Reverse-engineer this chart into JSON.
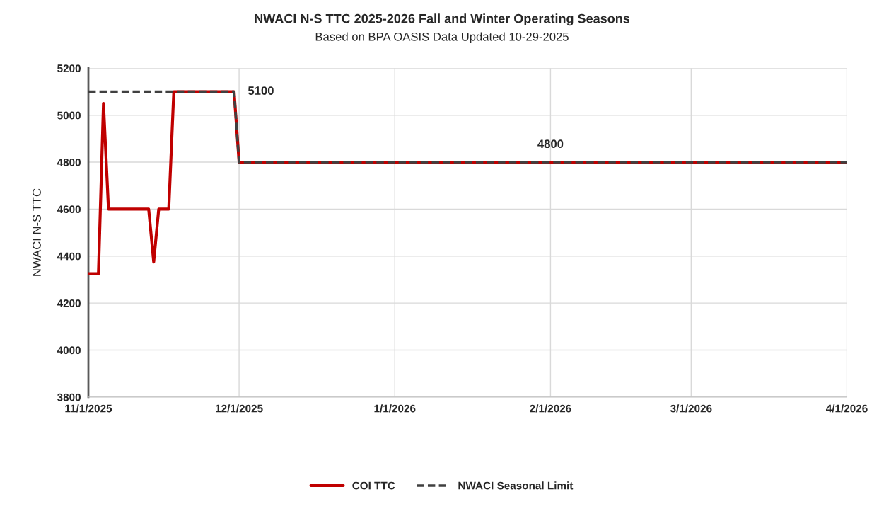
{
  "chart_data": {
    "type": "line",
    "title": "NWACI N-S TTC 2025-2026 Fall and Winter Operating Seasons",
    "subtitle": "Based on BPA OASIS Data Updated 10-29-2025",
    "ylabel": "NWACI N-S TTC",
    "series": [
      {
        "name": "COI TTC",
        "color": "#c00000",
        "line_style": "solid",
        "x": [
          "2025-11-01",
          "2025-11-03",
          "2025-11-04",
          "2025-11-05",
          "2025-11-13",
          "2025-11-14",
          "2025-11-15",
          "2025-11-17",
          "2025-11-18",
          "2025-11-30",
          "2025-12-01",
          "2026-04-01"
        ],
        "values": [
          4325,
          4325,
          5050,
          4600,
          4600,
          4375,
          4600,
          4600,
          5100,
          5100,
          4800,
          4800
        ]
      },
      {
        "name": "NWACI Seasonal Limit",
        "color": "#404040",
        "line_style": "dashed",
        "x": [
          "2025-11-01",
          "2025-11-30",
          "2025-12-01",
          "2026-04-01"
        ],
        "values": [
          5100,
          5100,
          4800,
          4800
        ]
      }
    ],
    "annotations": [
      {
        "text": "5100",
        "x": "2025-11-30",
        "y": 5100
      },
      {
        "text": "4800",
        "x": "2026-02-01",
        "y": 4800
      }
    ],
    "xlim": [
      "2025-11-01",
      "2026-04-01"
    ],
    "xticks": [
      {
        "value": "2025-11-01",
        "label": "11/1/2025"
      },
      {
        "value": "2025-12-01",
        "label": "12/1/2025"
      },
      {
        "value": "2026-01-01",
        "label": "1/1/2026"
      },
      {
        "value": "2026-02-01",
        "label": "2/1/2026"
      },
      {
        "value": "2026-03-01",
        "label": "3/1/2026"
      },
      {
        "value": "2026-04-01",
        "label": "4/1/2026"
      }
    ],
    "ylim": [
      3800,
      5200
    ],
    "yticks": [
      3800,
      4000,
      4200,
      4400,
      4600,
      4800,
      5000,
      5200
    ],
    "grid": true,
    "legend": "bottom",
    "marker": "none"
  }
}
